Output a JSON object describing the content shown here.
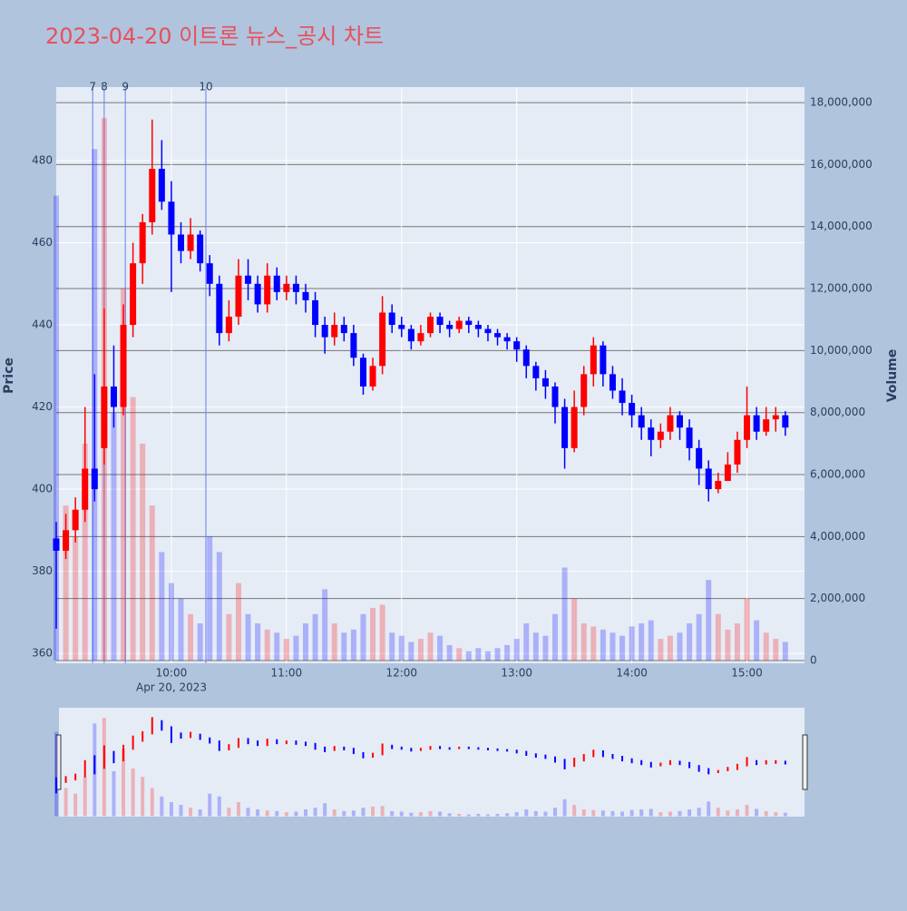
{
  "chart_data": {
    "type": "candlestick",
    "title": "2023-04-20 이트론 뉴스_공시 차트",
    "y_label": "Price",
    "y2_label": "Volume",
    "x_date_label": "Apr 20, 2023",
    "up_color": "#ff0000",
    "down_color": "#0000ff",
    "grid": true,
    "xlim": [
      "2023-04-20 09:00",
      "2023-04-20 15:30"
    ],
    "xticks": [
      {
        "value": "2023-04-20 10:00",
        "label": "10:00"
      },
      {
        "value": "2023-04-20 11:00",
        "label": "11:00"
      },
      {
        "value": "2023-04-20 12:00",
        "label": "12:00"
      },
      {
        "value": "2023-04-20 13:00",
        "label": "13:00"
      },
      {
        "value": "2023-04-20 14:00",
        "label": "14:00"
      },
      {
        "value": "2023-04-20 15:00",
        "label": "15:00"
      }
    ],
    "ylim": [
      357.6,
      497.9
    ],
    "yticks": [
      360,
      380,
      400,
      420,
      440,
      460,
      480
    ],
    "y2lim": [
      -88000,
      18500000
    ],
    "y2ticks": [
      0,
      {
        "value": 2000000,
        "label": "2,000,000"
      },
      {
        "value": 4000000,
        "label": "4,000,000"
      },
      {
        "value": 6000000,
        "label": "6,000,000"
      },
      {
        "value": 8000000,
        "label": "8,000,000"
      },
      {
        "value": 10000000,
        "label": "10,000,000"
      },
      {
        "value": 12000000,
        "label": "12,000,000"
      },
      {
        "value": 14000000,
        "label": "14,000,000"
      },
      {
        "value": 16000000,
        "label": "16,000,000"
      },
      {
        "value": 18000000,
        "label": "18,000,000"
      }
    ],
    "annotations": [
      {
        "x": "2023-04-20 09:19",
        "text": "7"
      },
      {
        "x": "2023-04-20 09:25",
        "text": "8"
      },
      {
        "x": "2023-04-20 09:36",
        "text": "9"
      },
      {
        "x": "2023-04-20 10:18",
        "text": "10"
      }
    ],
    "x": [
      "2023-04-20 09:00",
      "2023-04-20 09:05",
      "2023-04-20 09:10",
      "2023-04-20 09:15",
      "2023-04-20 09:20",
      "2023-04-20 09:25",
      "2023-04-20 09:30",
      "2023-04-20 09:35",
      "2023-04-20 09:40",
      "2023-04-20 09:45",
      "2023-04-20 09:50",
      "2023-04-20 09:55",
      "2023-04-20 10:00",
      "2023-04-20 10:05",
      "2023-04-20 10:10",
      "2023-04-20 10:15",
      "2023-04-20 10:20",
      "2023-04-20 10:25",
      "2023-04-20 10:30",
      "2023-04-20 10:35",
      "2023-04-20 10:40",
      "2023-04-20 10:45",
      "2023-04-20 10:50",
      "2023-04-20 10:55",
      "2023-04-20 11:00",
      "2023-04-20 11:05",
      "2023-04-20 11:10",
      "2023-04-20 11:15",
      "2023-04-20 11:20",
      "2023-04-20 11:25",
      "2023-04-20 11:30",
      "2023-04-20 11:35",
      "2023-04-20 11:40",
      "2023-04-20 11:45",
      "2023-04-20 11:50",
      "2023-04-20 11:55",
      "2023-04-20 12:00",
      "2023-04-20 12:05",
      "2023-04-20 12:10",
      "2023-04-20 12:15",
      "2023-04-20 12:20",
      "2023-04-20 12:25",
      "2023-04-20 12:30",
      "2023-04-20 12:35",
      "2023-04-20 12:40",
      "2023-04-20 12:45",
      "2023-04-20 12:50",
      "2023-04-20 12:55",
      "2023-04-20 13:00",
      "2023-04-20 13:05",
      "2023-04-20 13:10",
      "2023-04-20 13:15",
      "2023-04-20 13:20",
      "2023-04-20 13:25",
      "2023-04-20 13:30",
      "2023-04-20 13:35",
      "2023-04-20 13:40",
      "2023-04-20 13:45",
      "2023-04-20 13:50",
      "2023-04-20 13:55",
      "2023-04-20 14:00",
      "2023-04-20 14:05",
      "2023-04-20 14:10",
      "2023-04-20 14:15",
      "2023-04-20 14:20",
      "2023-04-20 14:25",
      "2023-04-20 14:30",
      "2023-04-20 14:35",
      "2023-04-20 14:40",
      "2023-04-20 14:45",
      "2023-04-20 14:50",
      "2023-04-20 14:55",
      "2023-04-20 15:00",
      "2023-04-20 15:05",
      "2023-04-20 15:10",
      "2023-04-20 15:15",
      "2023-04-20 15:20"
    ],
    "open": [
      388,
      385,
      390,
      395,
      405,
      410,
      425,
      420,
      440,
      455,
      465,
      478,
      470,
      462,
      458,
      462,
      455,
      450,
      438,
      442,
      452,
      450,
      445,
      452,
      448,
      450,
      448,
      446,
      440,
      437,
      440,
      438,
      432,
      425,
      430,
      443,
      440,
      439,
      436,
      438,
      442,
      440,
      439,
      441,
      440,
      439,
      438,
      437,
      436,
      434,
      430,
      427,
      425,
      420,
      410,
      420,
      428,
      435,
      428,
      424,
      421,
      418,
      415,
      412,
      414,
      418,
      415,
      410,
      405,
      400,
      402,
      406,
      412,
      418,
      414,
      417,
      418
    ],
    "high": [
      392,
      394,
      398,
      420,
      428,
      444,
      435,
      445,
      460,
      467,
      490,
      485,
      475,
      465,
      466,
      463,
      457,
      452,
      446,
      456,
      456,
      452,
      455,
      454,
      452,
      452,
      450,
      448,
      442,
      443,
      442,
      440,
      433,
      432,
      447,
      445,
      442,
      440,
      440,
      443,
      443,
      441,
      442,
      442,
      441,
      440,
      439,
      438,
      437,
      435,
      431,
      429,
      426,
      422,
      424,
      430,
      437,
      436,
      430,
      427,
      423,
      420,
      417,
      416,
      420,
      419,
      417,
      412,
      407,
      404,
      409,
      414,
      425,
      420,
      420,
      420,
      419
    ],
    "low": [
      366,
      383,
      387,
      392,
      397,
      406,
      415,
      418,
      437,
      450,
      462,
      468,
      448,
      455,
      456,
      453,
      447,
      435,
      436,
      440,
      446,
      443,
      443,
      446,
      446,
      445,
      443,
      437,
      433,
      435,
      436,
      430,
      423,
      424,
      428,
      438,
      437,
      434,
      435,
      437,
      438,
      437,
      438,
      438,
      437,
      436,
      435,
      434,
      431,
      427,
      424,
      422,
      416,
      405,
      409,
      418,
      425,
      425,
      422,
      418,
      415,
      412,
      408,
      410,
      412,
      412,
      407,
      401,
      397,
      399,
      402,
      404,
      410,
      412,
      413,
      414,
      413
    ],
    "close": [
      385,
      390,
      395,
      405,
      400,
      425,
      420,
      440,
      455,
      465,
      478,
      470,
      462,
      458,
      462,
      455,
      450,
      438,
      442,
      452,
      450,
      445,
      452,
      448,
      450,
      448,
      446,
      440,
      437,
      440,
      438,
      432,
      425,
      430,
      443,
      440,
      439,
      436,
      438,
      442,
      440,
      439,
      441,
      440,
      439,
      438,
      437,
      436,
      434,
      430,
      427,
      425,
      420,
      410,
      420,
      428,
      435,
      428,
      424,
      421,
      418,
      415,
      412,
      414,
      418,
      415,
      410,
      405,
      400,
      402,
      406,
      412,
      418,
      414,
      417,
      418,
      415
    ],
    "volume": [
      15000000,
      5000000,
      4000000,
      7000000,
      16500000,
      17500000,
      8000000,
      12000000,
      8500000,
      7000000,
      5000000,
      3500000,
      2500000,
      2000000,
      1500000,
      1200000,
      4000000,
      3500000,
      1500000,
      2500000,
      1500000,
      1200000,
      1000000,
      900000,
      700000,
      800000,
      1200000,
      1500000,
      2300000,
      1200000,
      900000,
      1000000,
      1500000,
      1700000,
      1800000,
      900000,
      800000,
      600000,
      700000,
      900000,
      800000,
      500000,
      400000,
      300000,
      400000,
      300000,
      400000,
      500000,
      700000,
      1200000,
      900000,
      800000,
      1500000,
      3000000,
      2000000,
      1200000,
      1100000,
      1000000,
      900000,
      800000,
      1100000,
      1200000,
      1300000,
      700000,
      800000,
      900000,
      1200000,
      1500000,
      2600000,
      1500000,
      1000000,
      1200000,
      2000000,
      1300000,
      900000,
      700000,
      600000
    ]
  }
}
